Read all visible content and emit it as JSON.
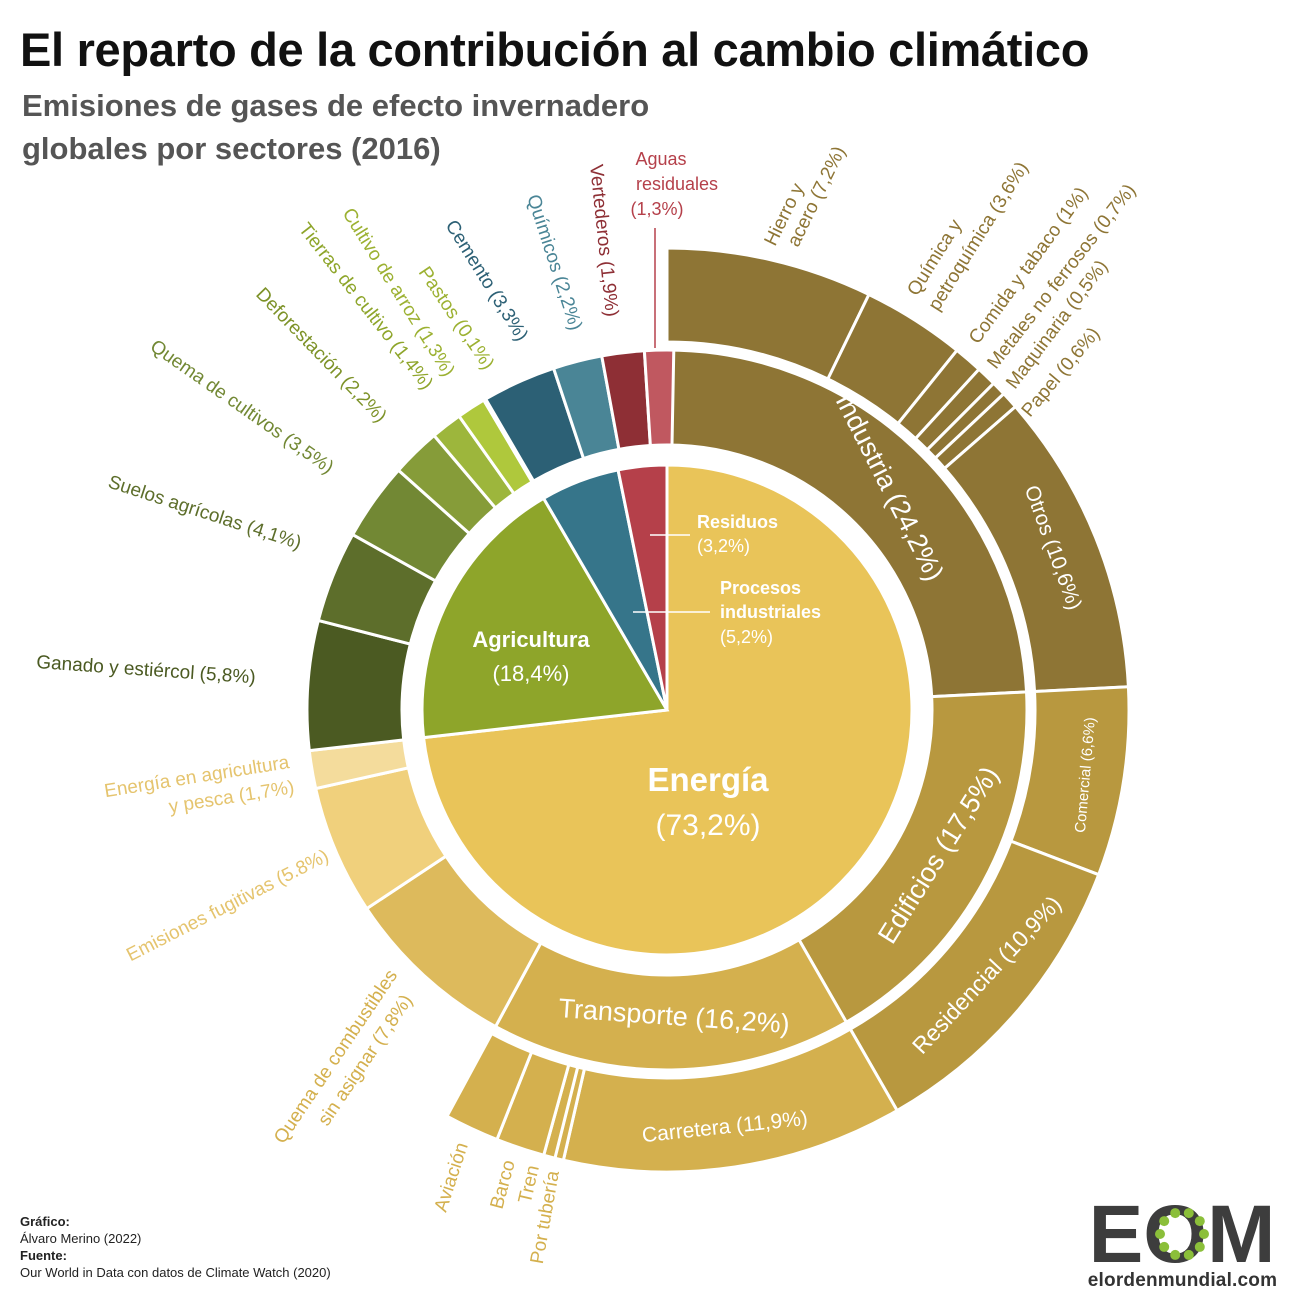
{
  "header": {
    "title": "El reparto de la contribución al cambio climático",
    "subtitle_line1": "Emisiones de gases de efecto invernadero",
    "subtitle_line2": "globales por sectores (2016)"
  },
  "chart_data": {
    "type": "sunburst",
    "title": "El reparto de la contribución al cambio climático",
    "subtitle": "Emisiones de gases de efecto invernadero globales por sectores (2016)",
    "unit": "% de emisiones globales",
    "categories": [
      {
        "name": "Energía",
        "value": 73.2,
        "color": "#e9c459",
        "sectors": [
          {
            "name": "Industria",
            "value": 24.2,
            "color": "#8e7535",
            "subsectors": [
              {
                "name": "Hierro y acero",
                "value": 7.2
              },
              {
                "name": "Química y petroquímica",
                "value": 3.6
              },
              {
                "name": "Comida y tabaco",
                "value": 1.0
              },
              {
                "name": "Metales no ferrosos",
                "value": 0.7
              },
              {
                "name": "Maquinaria",
                "value": 0.5
              },
              {
                "name": "Papel",
                "value": 0.6
              },
              {
                "name": "Otros",
                "value": 10.6
              }
            ]
          },
          {
            "name": "Edificios",
            "value": 17.5,
            "color": "#b8983f",
            "subsectors": [
              {
                "name": "Comercial",
                "value": 6.6
              },
              {
                "name": "Residencial",
                "value": 10.9
              }
            ]
          },
          {
            "name": "Transporte",
            "value": 16.2,
            "color": "#d4b04e",
            "subsectors": [
              {
                "name": "Carretera",
                "value": 11.9
              },
              {
                "name": "Por tubería",
                "value": 0.3
              },
              {
                "name": "Tren",
                "value": 0.4
              },
              {
                "name": "Barco",
                "value": 1.7
              },
              {
                "name": "Aviación",
                "value": 1.9
              }
            ]
          },
          {
            "name": "Quema de combustibles sin asignar",
            "value": 7.8,
            "color": "#ddba5c"
          },
          {
            "name": "Emisiones fugitivas",
            "value": 5.8,
            "color": "#f0d07c"
          },
          {
            "name": "Energía en agricultura y pesca",
            "value": 1.7,
            "color": "#f4dc9c"
          }
        ]
      },
      {
        "name": "Agricultura",
        "value": 18.4,
        "color": "#8ea52a",
        "sectors": [
          {
            "name": "Ganado y estiércol",
            "value": 5.8,
            "color": "#4b5a22"
          },
          {
            "name": "Suelos agrícolas",
            "value": 4.1,
            "color": "#5d6e2b"
          },
          {
            "name": "Quema de cultivos",
            "value": 3.5,
            "color": "#728834"
          },
          {
            "name": "Deforestación",
            "value": 2.2,
            "color": "#869c39"
          },
          {
            "name": "Tierras de cultivo",
            "value": 1.4,
            "color": "#9db63c"
          },
          {
            "name": "Cultivo de arroz",
            "value": 1.3,
            "color": "#afc83c"
          },
          {
            "name": "Pastos",
            "value": 0.1,
            "color": "#c4dc4a"
          }
        ]
      },
      {
        "name": "Procesos industriales",
        "value": 5.2,
        "color": "#36758a",
        "sectors": [
          {
            "name": "Cemento",
            "value": 3.3,
            "color": "#2c6075"
          },
          {
            "name": "Químicos",
            "value": 2.2,
            "color": "#4a8596"
          }
        ]
      },
      {
        "name": "Residuos",
        "value": 3.2,
        "color": "#b5404a",
        "sectors": [
          {
            "name": "Vertederos",
            "value": 1.9,
            "color": "#8e2f35"
          },
          {
            "name": "Aguas residuales",
            "value": 1.3,
            "color": "#c05860"
          }
        ]
      }
    ]
  },
  "labels": {
    "center": {
      "energia_name": "Energía",
      "energia_value": "(73,2%)",
      "agricultura_name": "Agricultura",
      "agricultura_value": "(18,4%)",
      "residuos_name": "Residuos",
      "residuos_value": "(3,2%)",
      "procesos_line1": "Procesos",
      "procesos_line2": "industriales",
      "procesos_value": "(5,2%)"
    },
    "ring": {
      "industria": "Industria (24,2%)",
      "edificios": "Edificios (17,5%)",
      "transporte": "Transporte (16,2%)"
    },
    "outer": {
      "otros": "Otros (10,6%)",
      "comercial": "Comercial (6,6%)",
      "residencial": "Residencial (10,9%)",
      "carretera": "Carretera (11,9%)"
    },
    "external": {
      "hierro_1": "Hierro y",
      "hierro_2": "acero (7,2%)",
      "quimica_1": "Química y",
      "quimica_2": "petroquímica (3,6%)",
      "comida": "Comida y tabaco (1%)",
      "metales": "Metales no ferrosos (0,7%)",
      "maquinaria": "Maquinaria (0,5%)",
      "papel": "Papel (0,6%)",
      "aguas_1": "Aguas",
      "aguas_2": "residuales",
      "aguas_3": "(1,3%)",
      "vertederos": "Vertederos (1,9%)",
      "quimicos": "Químicos (2,2%)",
      "cemento": "Cemento (3,3%)",
      "pastos": "Pastos (0,1%)",
      "arroz": "Cultivo de arroz (1,3%)",
      "tierras": "Tierras de cultivo (1,4%)",
      "deforestacion": "Deforestación (2,2%)",
      "quema_cultivos": "Quema de cultivos (3,5%)",
      "suelos": "Suelos agrícolas (4,1%)",
      "ganado": "Ganado y estiércol (5,8%)",
      "energia_agri_1": "Energía en agricultura",
      "energia_agri_2": "y pesca (1,7%)",
      "fugitivas": "Emisiones fugitivas (5.8%)",
      "quema_comb_1": "Quema de combustibles",
      "quema_comb_2": "sin asignar (7,8%)",
      "aviacion": "Aviación",
      "barco": "Barco",
      "tren": "Tren",
      "tuberia": "Por tubería"
    }
  },
  "credits": {
    "grafico_label": "Gráfico:",
    "grafico_value": "Álvaro Merino (2022)",
    "fuente_label": "Fuente:",
    "fuente_value": "Our World in Data con datos de Climate Watch (2020)"
  },
  "logo": {
    "letters": "EOM",
    "url": "elordenmundial.com",
    "color": "#3d3d3d",
    "dot_color": "#8bbf3a"
  }
}
